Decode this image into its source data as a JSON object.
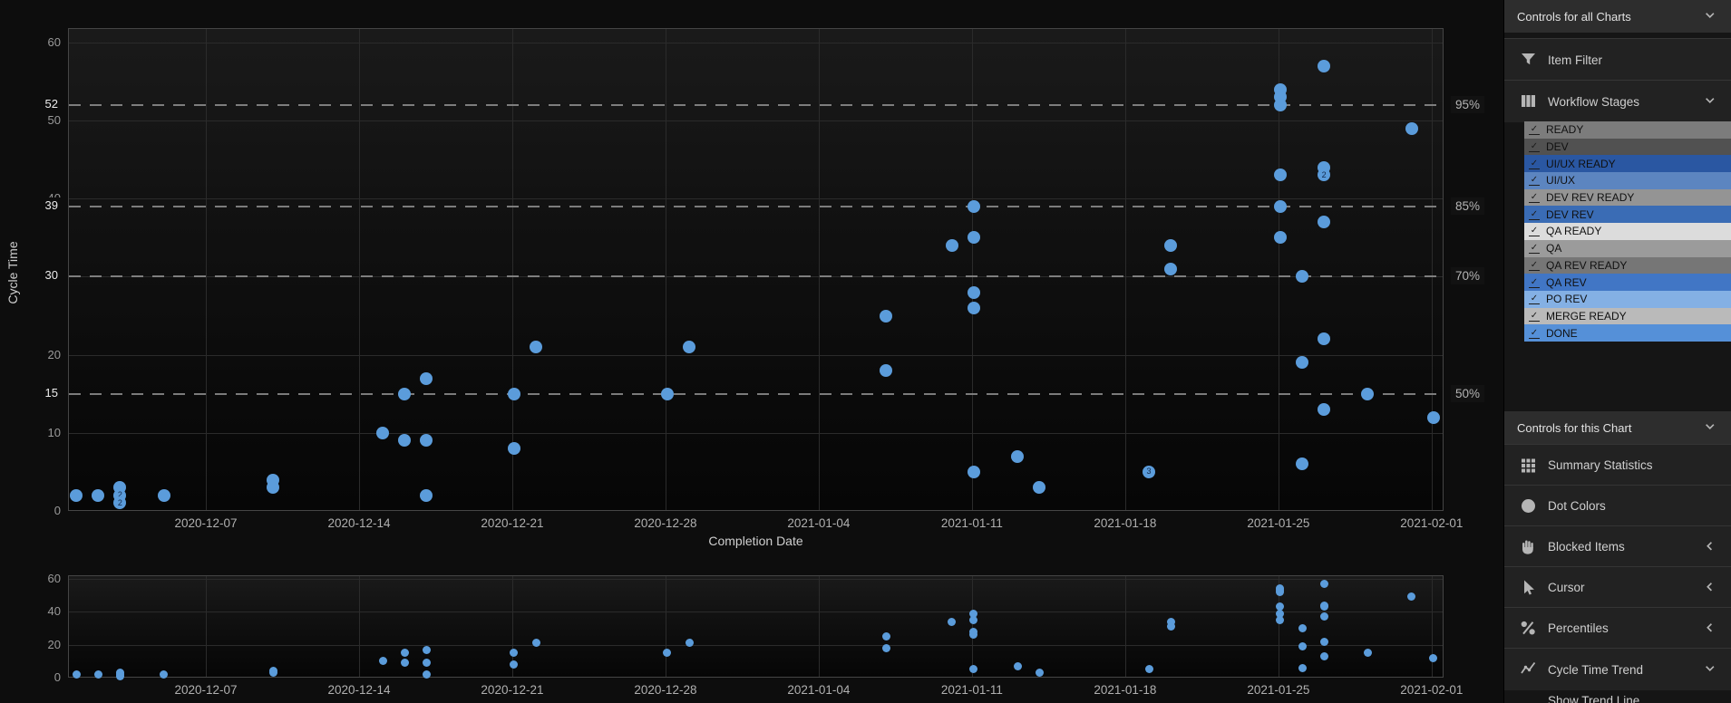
{
  "colors": {
    "page_bg": "#0d0d0d",
    "marker_blue": "#5b9cdb",
    "grid": "#2b2b2b",
    "percentile_line": "#8f8f8f"
  },
  "chart_data": [
    {
      "type": "scatter",
      "name": "cycle-time-scatterplot",
      "xlabel": "Completion Date",
      "ylabel": "Cycle Time",
      "x_ticks": [
        "2020-12-07",
        "2020-12-14",
        "2020-12-21",
        "2020-12-28",
        "2021-01-04",
        "2021-01-11",
        "2021-01-18",
        "2021-01-25",
        "2021-02-01"
      ],
      "y_ticks": [
        0,
        10,
        20,
        30,
        40,
        50,
        60
      ],
      "ylim": [
        0,
        61.8
      ],
      "grid": true,
      "marker_color": "#5b9cdb",
      "percentiles": [
        {
          "label": "50%",
          "value": 15
        },
        {
          "label": "70%",
          "value": 30
        },
        {
          "label": "85%",
          "value": 39
        },
        {
          "label": "95%",
          "value": 52
        }
      ],
      "points": [
        {
          "date": "2020-12-01",
          "y": 2
        },
        {
          "date": "2020-12-02",
          "y": 2
        },
        {
          "date": "2020-12-03",
          "y": 3
        },
        {
          "date": "2020-12-03",
          "y": 2,
          "count": 2
        },
        {
          "date": "2020-12-03",
          "y": 1,
          "count": 2
        },
        {
          "date": "2020-12-05",
          "y": 2
        },
        {
          "date": "2020-12-10",
          "y": 4
        },
        {
          "date": "2020-12-10",
          "y": 3
        },
        {
          "date": "2020-12-15",
          "y": 10
        },
        {
          "date": "2020-12-16",
          "y": 15
        },
        {
          "date": "2020-12-16",
          "y": 9
        },
        {
          "date": "2020-12-17",
          "y": 17
        },
        {
          "date": "2020-12-17",
          "y": 9
        },
        {
          "date": "2020-12-17",
          "y": 2
        },
        {
          "date": "2020-12-21",
          "y": 15
        },
        {
          "date": "2020-12-21",
          "y": 8
        },
        {
          "date": "2020-12-22",
          "y": 21
        },
        {
          "date": "2020-12-28",
          "y": 15
        },
        {
          "date": "2020-12-29",
          "y": 21
        },
        {
          "date": "2021-01-07",
          "y": 25
        },
        {
          "date": "2021-01-07",
          "y": 18
        },
        {
          "date": "2021-01-10",
          "y": 34
        },
        {
          "date": "2021-01-11",
          "y": 39
        },
        {
          "date": "2021-01-11",
          "y": 35
        },
        {
          "date": "2021-01-11",
          "y": 28
        },
        {
          "date": "2021-01-11",
          "y": 26
        },
        {
          "date": "2021-01-11",
          "y": 5
        },
        {
          "date": "2021-01-13",
          "y": 7
        },
        {
          "date": "2021-01-14",
          "y": 3
        },
        {
          "date": "2021-01-19",
          "y": 5,
          "count": 3
        },
        {
          "date": "2021-01-20",
          "y": 34
        },
        {
          "date": "2021-01-20",
          "y": 31
        },
        {
          "date": "2021-01-25",
          "y": 54
        },
        {
          "date": "2021-01-25",
          "y": 53
        },
        {
          "date": "2021-01-25",
          "y": 52
        },
        {
          "date": "2021-01-25",
          "y": 43
        },
        {
          "date": "2021-01-25",
          "y": 39
        },
        {
          "date": "2021-01-25",
          "y": 35
        },
        {
          "date": "2021-01-26",
          "y": 30
        },
        {
          "date": "2021-01-26",
          "y": 19
        },
        {
          "date": "2021-01-26",
          "y": 6
        },
        {
          "date": "2021-01-27",
          "y": 57
        },
        {
          "date": "2021-01-27",
          "y": 44
        },
        {
          "date": "2021-01-27",
          "y": 43,
          "count": 2
        },
        {
          "date": "2021-01-27",
          "y": 37
        },
        {
          "date": "2021-01-27",
          "y": 22
        },
        {
          "date": "2021-01-27",
          "y": 13
        },
        {
          "date": "2021-01-29",
          "y": 15
        },
        {
          "date": "2021-01-31",
          "y": 49
        },
        {
          "date": "2021-02-01",
          "y": 12
        }
      ]
    },
    {
      "type": "scatter",
      "name": "overview-scatterplot",
      "x_ticks": [
        "2020-12-07",
        "2020-12-14",
        "2020-12-21",
        "2020-12-28",
        "2021-01-04",
        "2021-01-11",
        "2021-01-18",
        "2021-01-25",
        "2021-02-01"
      ],
      "y_ticks": [
        0,
        20,
        40,
        60
      ],
      "ylim": [
        0,
        61.8
      ],
      "grid": true,
      "marker_color": "#5b9cdb",
      "points_same_as": 0
    }
  ],
  "sidebar": {
    "sections": [
      {
        "kind": "header",
        "label": "Controls for all Charts",
        "chevron": "down"
      },
      {
        "kind": "row",
        "icon": "filter-icon",
        "label": "Item Filter"
      },
      {
        "kind": "row",
        "icon": "columns-icon",
        "label": "Workflow Stages",
        "chevron": "down"
      },
      {
        "kind": "stages",
        "items": [
          {
            "label": "READY",
            "color": "#7c7c7c"
          },
          {
            "label": "DEV",
            "color": "#515151"
          },
          {
            "label": "UI/UX READY",
            "color": "#2a57a2"
          },
          {
            "label": "UI/UX",
            "color": "#5c85c0"
          },
          {
            "label": "DEV REV READY",
            "color": "#949494"
          },
          {
            "label": "DEV REV",
            "color": "#3a6cb5"
          },
          {
            "label": "QA READY",
            "color": "#dcdcdc"
          },
          {
            "label": "QA",
            "color": "#9b9b9b"
          },
          {
            "label": "QA REV READY",
            "color": "#767676"
          },
          {
            "label": "QA REV",
            "color": "#4176c5"
          },
          {
            "label": "PO REV",
            "color": "#84b0e4"
          },
          {
            "label": "MERGE READY",
            "color": "#bababa"
          },
          {
            "label": "DONE",
            "color": "#5590d8"
          }
        ]
      },
      {
        "kind": "header",
        "label": "Controls for this Chart",
        "chevron": "down"
      },
      {
        "kind": "row",
        "icon": "grid-icon",
        "label": "Summary Statistics"
      },
      {
        "kind": "row",
        "icon": "circle-icon",
        "label": "Dot Colors"
      },
      {
        "kind": "row",
        "icon": "hand-icon",
        "label": "Blocked Items",
        "chevron": "left"
      },
      {
        "kind": "row",
        "icon": "cursor-icon",
        "label": "Cursor",
        "chevron": "left"
      },
      {
        "kind": "row",
        "icon": "percent-icon",
        "label": "Percentiles",
        "chevron": "left"
      },
      {
        "kind": "row",
        "icon": "trend-icon",
        "label": "Cycle Time Trend",
        "chevron": "down"
      },
      {
        "kind": "subrow",
        "label": "Show Trend Line"
      }
    ]
  }
}
